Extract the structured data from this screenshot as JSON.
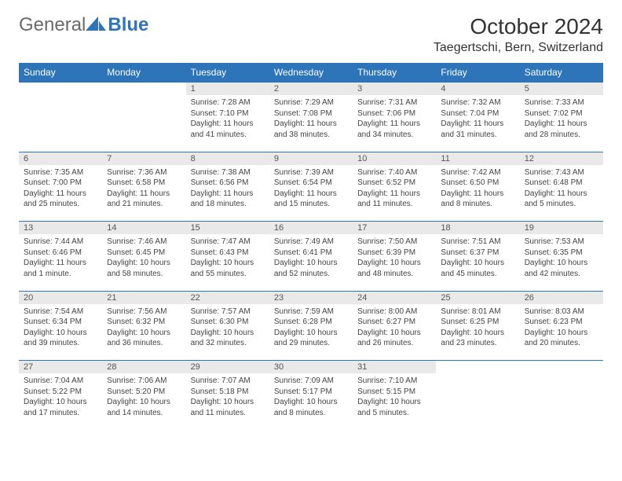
{
  "brand": {
    "part1": "General",
    "part2": "Blue"
  },
  "title": "October 2024",
  "location": "Taegertschi, Bern, Switzerland",
  "colors": {
    "header_bg": "#2d74b8",
    "daynum_bg": "#e9e9e9",
    "border": "#2d74b8",
    "text": "#333333"
  },
  "day_headers": [
    "Sunday",
    "Monday",
    "Tuesday",
    "Wednesday",
    "Thursday",
    "Friday",
    "Saturday"
  ],
  "weeks": [
    [
      null,
      null,
      {
        "n": "1",
        "sunrise": "Sunrise: 7:28 AM",
        "sunset": "Sunset: 7:10 PM",
        "daylight": "Daylight: 11 hours and 41 minutes."
      },
      {
        "n": "2",
        "sunrise": "Sunrise: 7:29 AM",
        "sunset": "Sunset: 7:08 PM",
        "daylight": "Daylight: 11 hours and 38 minutes."
      },
      {
        "n": "3",
        "sunrise": "Sunrise: 7:31 AM",
        "sunset": "Sunset: 7:06 PM",
        "daylight": "Daylight: 11 hours and 34 minutes."
      },
      {
        "n": "4",
        "sunrise": "Sunrise: 7:32 AM",
        "sunset": "Sunset: 7:04 PM",
        "daylight": "Daylight: 11 hours and 31 minutes."
      },
      {
        "n": "5",
        "sunrise": "Sunrise: 7:33 AM",
        "sunset": "Sunset: 7:02 PM",
        "daylight": "Daylight: 11 hours and 28 minutes."
      }
    ],
    [
      {
        "n": "6",
        "sunrise": "Sunrise: 7:35 AM",
        "sunset": "Sunset: 7:00 PM",
        "daylight": "Daylight: 11 hours and 25 minutes."
      },
      {
        "n": "7",
        "sunrise": "Sunrise: 7:36 AM",
        "sunset": "Sunset: 6:58 PM",
        "daylight": "Daylight: 11 hours and 21 minutes."
      },
      {
        "n": "8",
        "sunrise": "Sunrise: 7:38 AM",
        "sunset": "Sunset: 6:56 PM",
        "daylight": "Daylight: 11 hours and 18 minutes."
      },
      {
        "n": "9",
        "sunrise": "Sunrise: 7:39 AM",
        "sunset": "Sunset: 6:54 PM",
        "daylight": "Daylight: 11 hours and 15 minutes."
      },
      {
        "n": "10",
        "sunrise": "Sunrise: 7:40 AM",
        "sunset": "Sunset: 6:52 PM",
        "daylight": "Daylight: 11 hours and 11 minutes."
      },
      {
        "n": "11",
        "sunrise": "Sunrise: 7:42 AM",
        "sunset": "Sunset: 6:50 PM",
        "daylight": "Daylight: 11 hours and 8 minutes."
      },
      {
        "n": "12",
        "sunrise": "Sunrise: 7:43 AM",
        "sunset": "Sunset: 6:48 PM",
        "daylight": "Daylight: 11 hours and 5 minutes."
      }
    ],
    [
      {
        "n": "13",
        "sunrise": "Sunrise: 7:44 AM",
        "sunset": "Sunset: 6:46 PM",
        "daylight": "Daylight: 11 hours and 1 minute."
      },
      {
        "n": "14",
        "sunrise": "Sunrise: 7:46 AM",
        "sunset": "Sunset: 6:45 PM",
        "daylight": "Daylight: 10 hours and 58 minutes."
      },
      {
        "n": "15",
        "sunrise": "Sunrise: 7:47 AM",
        "sunset": "Sunset: 6:43 PM",
        "daylight": "Daylight: 10 hours and 55 minutes."
      },
      {
        "n": "16",
        "sunrise": "Sunrise: 7:49 AM",
        "sunset": "Sunset: 6:41 PM",
        "daylight": "Daylight: 10 hours and 52 minutes."
      },
      {
        "n": "17",
        "sunrise": "Sunrise: 7:50 AM",
        "sunset": "Sunset: 6:39 PM",
        "daylight": "Daylight: 10 hours and 48 minutes."
      },
      {
        "n": "18",
        "sunrise": "Sunrise: 7:51 AM",
        "sunset": "Sunset: 6:37 PM",
        "daylight": "Daylight: 10 hours and 45 minutes."
      },
      {
        "n": "19",
        "sunrise": "Sunrise: 7:53 AM",
        "sunset": "Sunset: 6:35 PM",
        "daylight": "Daylight: 10 hours and 42 minutes."
      }
    ],
    [
      {
        "n": "20",
        "sunrise": "Sunrise: 7:54 AM",
        "sunset": "Sunset: 6:34 PM",
        "daylight": "Daylight: 10 hours and 39 minutes."
      },
      {
        "n": "21",
        "sunrise": "Sunrise: 7:56 AM",
        "sunset": "Sunset: 6:32 PM",
        "daylight": "Daylight: 10 hours and 36 minutes."
      },
      {
        "n": "22",
        "sunrise": "Sunrise: 7:57 AM",
        "sunset": "Sunset: 6:30 PM",
        "daylight": "Daylight: 10 hours and 32 minutes."
      },
      {
        "n": "23",
        "sunrise": "Sunrise: 7:59 AM",
        "sunset": "Sunset: 6:28 PM",
        "daylight": "Daylight: 10 hours and 29 minutes."
      },
      {
        "n": "24",
        "sunrise": "Sunrise: 8:00 AM",
        "sunset": "Sunset: 6:27 PM",
        "daylight": "Daylight: 10 hours and 26 minutes."
      },
      {
        "n": "25",
        "sunrise": "Sunrise: 8:01 AM",
        "sunset": "Sunset: 6:25 PM",
        "daylight": "Daylight: 10 hours and 23 minutes."
      },
      {
        "n": "26",
        "sunrise": "Sunrise: 8:03 AM",
        "sunset": "Sunset: 6:23 PM",
        "daylight": "Daylight: 10 hours and 20 minutes."
      }
    ],
    [
      {
        "n": "27",
        "sunrise": "Sunrise: 7:04 AM",
        "sunset": "Sunset: 5:22 PM",
        "daylight": "Daylight: 10 hours and 17 minutes."
      },
      {
        "n": "28",
        "sunrise": "Sunrise: 7:06 AM",
        "sunset": "Sunset: 5:20 PM",
        "daylight": "Daylight: 10 hours and 14 minutes."
      },
      {
        "n": "29",
        "sunrise": "Sunrise: 7:07 AM",
        "sunset": "Sunset: 5:18 PM",
        "daylight": "Daylight: 10 hours and 11 minutes."
      },
      {
        "n": "30",
        "sunrise": "Sunrise: 7:09 AM",
        "sunset": "Sunset: 5:17 PM",
        "daylight": "Daylight: 10 hours and 8 minutes."
      },
      {
        "n": "31",
        "sunrise": "Sunrise: 7:10 AM",
        "sunset": "Sunset: 5:15 PM",
        "daylight": "Daylight: 10 hours and 5 minutes."
      },
      null,
      null
    ]
  ]
}
